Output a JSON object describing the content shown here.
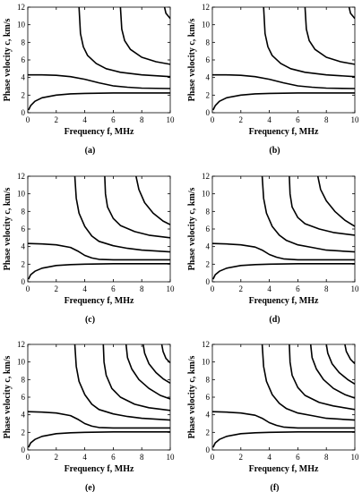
{
  "figure": {
    "panel_labels": [
      "(a)",
      "(b)",
      "(c)",
      "(d)",
      "(e)",
      "(f)"
    ]
  },
  "chart_data": [
    {
      "type": "line",
      "panel": "(a)",
      "xlabel": "Frequency f, MHz",
      "ylabel": "Phase velocity c, km/s",
      "xlim": [
        0,
        10
      ],
      "ylim": [
        0,
        12
      ],
      "xticks": [
        0,
        2,
        4,
        6,
        8,
        10
      ],
      "yticks": [
        0,
        2,
        4,
        6,
        8,
        10,
        12
      ],
      "grid": false,
      "series": [
        {
          "x": [
            0.05,
            0.2,
            0.5,
            1,
            2,
            3,
            4,
            6,
            8,
            10
          ],
          "y": [
            0.3,
            0.8,
            1.3,
            1.7,
            2.0,
            2.15,
            2.2,
            2.25,
            2.25,
            2.25
          ]
        },
        {
          "x": [
            0,
            1,
            2,
            3,
            4,
            5,
            6,
            7,
            8,
            10
          ],
          "y": [
            4.3,
            4.3,
            4.25,
            4.1,
            3.8,
            3.4,
            3.05,
            2.9,
            2.8,
            2.75
          ]
        },
        {
          "x": [
            3.6,
            3.7,
            3.9,
            4.2,
            4.8,
            5.5,
            6.5,
            8,
            10
          ],
          "y": [
            12,
            9,
            7.5,
            6.5,
            5.6,
            5.0,
            4.6,
            4.3,
            4.1
          ]
        },
        {
          "x": [
            6.5,
            6.6,
            6.8,
            7.2,
            8,
            9,
            10
          ],
          "y": [
            12,
            9.5,
            8.2,
            7.2,
            6.3,
            5.8,
            5.5
          ]
        },
        {
          "x": [
            9.6,
            9.7,
            9.9,
            10
          ],
          "y": [
            12,
            11.3,
            10.9,
            10.7
          ]
        }
      ]
    },
    {
      "type": "line",
      "panel": "(b)",
      "xlabel": "Frequency f, MHz",
      "ylabel": "Phase velocity c, km/s",
      "xlim": [
        0,
        10
      ],
      "ylim": [
        0,
        12
      ],
      "xticks": [
        0,
        2,
        4,
        6,
        8,
        10
      ],
      "yticks": [
        0,
        2,
        4,
        6,
        8,
        10,
        12
      ],
      "grid": false,
      "series": [
        {
          "x": [
            0.05,
            0.2,
            0.5,
            1,
            2,
            3,
            4,
            6,
            8,
            10
          ],
          "y": [
            0.3,
            0.8,
            1.3,
            1.7,
            2.0,
            2.15,
            2.2,
            2.25,
            2.25,
            2.25
          ]
        },
        {
          "x": [
            0,
            1,
            2,
            3,
            4,
            5,
            6,
            7,
            8,
            10
          ],
          "y": [
            4.3,
            4.3,
            4.25,
            4.1,
            3.8,
            3.4,
            3.05,
            2.9,
            2.8,
            2.75
          ]
        },
        {
          "x": [
            3.6,
            3.7,
            3.9,
            4.2,
            4.8,
            5.5,
            6.5,
            8,
            10
          ],
          "y": [
            12,
            9,
            7.5,
            6.5,
            5.6,
            5.0,
            4.6,
            4.3,
            4.1
          ]
        },
        {
          "x": [
            6.5,
            6.6,
            6.8,
            7.2,
            8,
            9,
            10
          ],
          "y": [
            12,
            9.5,
            8.2,
            7.2,
            6.3,
            5.8,
            5.5
          ]
        },
        {
          "x": [
            9.6,
            9.7,
            9.9,
            10
          ],
          "y": [
            12,
            11.3,
            10.9,
            10.7
          ]
        }
      ]
    },
    {
      "type": "line",
      "panel": "(c)",
      "xlabel": "Frequency f, MHz",
      "ylabel": "Phase velocity c, km/s",
      "xlim": [
        0,
        10
      ],
      "ylim": [
        0,
        12
      ],
      "xticks": [
        0,
        2,
        4,
        6,
        8,
        10
      ],
      "yticks": [
        0,
        2,
        4,
        6,
        8,
        10,
        12
      ],
      "grid": false,
      "series": [
        {
          "x": [
            0.05,
            0.2,
            0.5,
            1,
            2,
            3,
            4,
            6,
            8,
            10
          ],
          "y": [
            0.3,
            0.8,
            1.2,
            1.55,
            1.85,
            1.95,
            2.0,
            2.05,
            2.05,
            2.05
          ]
        },
        {
          "x": [
            0,
            1,
            2,
            3,
            3.5,
            4,
            4.5,
            5,
            6,
            8,
            10
          ],
          "y": [
            4.35,
            4.3,
            4.2,
            3.9,
            3.5,
            3.0,
            2.7,
            2.55,
            2.5,
            2.5,
            2.5
          ]
        },
        {
          "x": [
            3.3,
            3.4,
            3.6,
            4,
            4.5,
            5,
            6,
            7,
            8,
            10
          ],
          "y": [
            12,
            9.5,
            7.8,
            6.3,
            5.2,
            4.6,
            4.1,
            3.8,
            3.6,
            3.4
          ]
        },
        {
          "x": [
            5.4,
            5.45,
            5.6,
            6,
            6.5,
            7.5,
            8.5,
            10
          ],
          "y": [
            12,
            10,
            8.5,
            7.2,
            6.4,
            5.7,
            5.3,
            5.0
          ]
        },
        {
          "x": [
            7.6,
            7.8,
            8.2,
            8.8,
            9.5,
            10
          ],
          "y": [
            12,
            10.5,
            9.0,
            7.8,
            6.9,
            6.5
          ]
        }
      ]
    },
    {
      "type": "line",
      "panel": "(d)",
      "xlabel": "Frequency f, MHz",
      "ylabel": "Phase velocity c, km/s",
      "xlim": [
        0,
        10
      ],
      "ylim": [
        0,
        12
      ],
      "xticks": [
        0,
        2,
        4,
        6,
        8,
        10
      ],
      "yticks": [
        0,
        2,
        4,
        6,
        8,
        10,
        12
      ],
      "grid": false,
      "series": [
        {
          "x": [
            0.05,
            0.2,
            0.5,
            1,
            2,
            3,
            4,
            6,
            8,
            10
          ],
          "y": [
            0.3,
            0.8,
            1.2,
            1.55,
            1.85,
            1.95,
            2.0,
            2.05,
            2.05,
            2.05
          ]
        },
        {
          "x": [
            0,
            1,
            2,
            3,
            3.5,
            4,
            4.5,
            5,
            6,
            8,
            10
          ],
          "y": [
            4.35,
            4.3,
            4.2,
            3.95,
            3.6,
            3.1,
            2.8,
            2.6,
            2.5,
            2.5,
            2.5
          ]
        },
        {
          "x": [
            3.5,
            3.6,
            3.8,
            4.2,
            4.7,
            5.2,
            6,
            7,
            8,
            10
          ],
          "y": [
            12,
            9.5,
            7.8,
            6.3,
            5.3,
            4.7,
            4.2,
            3.9,
            3.6,
            3.4
          ]
        },
        {
          "x": [
            5.4,
            5.45,
            5.6,
            6,
            6.5,
            7.5,
            8.5,
            10
          ],
          "y": [
            12,
            10,
            8.5,
            7.3,
            6.6,
            6.0,
            5.6,
            5.3
          ]
        },
        {
          "x": [
            7.4,
            7.6,
            8,
            8.6,
            9.3,
            10
          ],
          "y": [
            12,
            10.5,
            9.2,
            8.0,
            7.0,
            6.3
          ]
        }
      ]
    },
    {
      "type": "line",
      "panel": "(e)",
      "xlabel": "Frequency f, MHz",
      "ylabel": "Phase velocity c, km/s",
      "xlim": [
        0,
        10
      ],
      "ylim": [
        0,
        12
      ],
      "xticks": [
        0,
        2,
        4,
        6,
        8,
        10
      ],
      "yticks": [
        0,
        2,
        4,
        6,
        8,
        10,
        12
      ],
      "grid": false,
      "series": [
        {
          "x": [
            0.05,
            0.2,
            0.5,
            1,
            2,
            3,
            4,
            6,
            8,
            10
          ],
          "y": [
            0.3,
            0.8,
            1.2,
            1.55,
            1.85,
            1.95,
            2.0,
            2.05,
            2.05,
            2.05
          ]
        },
        {
          "x": [
            0,
            1,
            2,
            3,
            3.5,
            4,
            4.5,
            5,
            6,
            8,
            10
          ],
          "y": [
            4.35,
            4.3,
            4.2,
            3.9,
            3.5,
            3.0,
            2.7,
            2.55,
            2.5,
            2.5,
            2.5
          ]
        },
        {
          "x": [
            3.3,
            3.4,
            3.6,
            4,
            4.5,
            5,
            6,
            7,
            8,
            10
          ],
          "y": [
            12,
            9.5,
            7.8,
            6.3,
            5.2,
            4.6,
            4.1,
            3.8,
            3.6,
            3.4
          ]
        },
        {
          "x": [
            5.3,
            5.35,
            5.5,
            5.9,
            6.5,
            7.5,
            8.5,
            10
          ],
          "y": [
            12,
            10,
            8.5,
            7.0,
            6.0,
            5.2,
            4.8,
            4.5
          ]
        },
        {
          "x": [
            6.9,
            7.0,
            7.3,
            7.8,
            8.5,
            9.3,
            10
          ],
          "y": [
            12,
            10.5,
            9.2,
            8.0,
            7.0,
            6.2,
            5.8
          ]
        },
        {
          "x": [
            8.1,
            8.2,
            8.5,
            9.0,
            9.5,
            10
          ],
          "y": [
            12,
            11,
            9.8,
            8.8,
            8.1,
            7.6
          ]
        },
        {
          "x": [
            9.4,
            9.5,
            9.7,
            10
          ],
          "y": [
            12,
            11.2,
            10.4,
            9.9
          ]
        }
      ]
    },
    {
      "type": "line",
      "panel": "(f)",
      "xlabel": "Frequency f, MHz",
      "ylabel": "Phase velocity c, km/s",
      "xlim": [
        0,
        10
      ],
      "ylim": [
        0,
        12
      ],
      "xticks": [
        0,
        2,
        4,
        6,
        8,
        10
      ],
      "yticks": [
        0,
        2,
        4,
        6,
        8,
        10,
        12
      ],
      "grid": false,
      "series": [
        {
          "x": [
            0.05,
            0.2,
            0.5,
            1,
            2,
            3,
            4,
            6,
            8,
            10
          ],
          "y": [
            0.3,
            0.8,
            1.2,
            1.55,
            1.85,
            1.95,
            2.0,
            2.05,
            2.05,
            2.05
          ]
        },
        {
          "x": [
            0,
            1,
            2,
            3,
            3.5,
            4,
            4.5,
            5,
            6,
            8,
            10
          ],
          "y": [
            4.35,
            4.3,
            4.2,
            3.95,
            3.6,
            3.1,
            2.8,
            2.6,
            2.5,
            2.5,
            2.5
          ]
        },
        {
          "x": [
            3.5,
            3.6,
            3.8,
            4.2,
            4.7,
            5.2,
            6,
            7,
            8,
            10
          ],
          "y": [
            12,
            9.5,
            7.8,
            6.3,
            5.3,
            4.7,
            4.2,
            3.9,
            3.6,
            3.4
          ]
        },
        {
          "x": [
            5.4,
            5.45,
            5.6,
            6,
            6.5,
            7.5,
            8.5,
            10
          ],
          "y": [
            12,
            10,
            8.5,
            7.1,
            6.2,
            5.4,
            5.0,
            4.6
          ]
        },
        {
          "x": [
            6.9,
            7.0,
            7.3,
            7.8,
            8.5,
            9.3,
            10
          ],
          "y": [
            12,
            10.5,
            9.2,
            8.0,
            7.0,
            6.3,
            5.9
          ]
        },
        {
          "x": [
            8.0,
            8.1,
            8.4,
            8.9,
            9.5,
            10
          ],
          "y": [
            12,
            11,
            9.8,
            8.8,
            8.0,
            7.5
          ]
        },
        {
          "x": [
            9.3,
            9.4,
            9.7,
            10
          ],
          "y": [
            12,
            11.2,
            10.3,
            9.8
          ]
        }
      ]
    }
  ]
}
